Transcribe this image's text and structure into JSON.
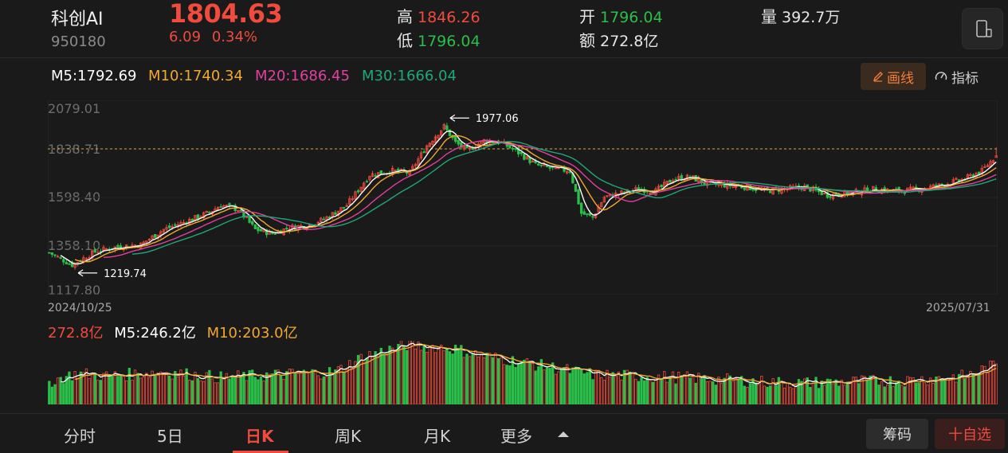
{
  "stock": {
    "name": "科创AI",
    "code": "950180",
    "price": "1804.63",
    "change": "6.09",
    "change_pct": "0.34%"
  },
  "quote": {
    "high_label": "高",
    "high": "1846.26",
    "low_label": "低",
    "low": "1796.04",
    "open_label": "开",
    "open": "1796.04",
    "amount_label": "额",
    "amount": "272.8亿",
    "volume_label": "量",
    "volume": "392.7万"
  },
  "ma": {
    "m5": "M5:1792.69",
    "m10": "M10:1740.34",
    "m20": "M20:1686.45",
    "m30": "M30:1666.04"
  },
  "toolbar": {
    "draw_label": "画线",
    "indicator_label": "指标"
  },
  "chart": {
    "y_labels": [
      "2079.01",
      "1838.71",
      "1598.40",
      "1358.10",
      "1117.80"
    ],
    "start_date": "2024/10/25",
    "end_date": "2025/07/31",
    "max_marker": "1977.06",
    "min_marker": "1219.74"
  },
  "volume": {
    "today": "272.8亿",
    "m5": "M5:246.2亿",
    "m10": "M10:203.0亿"
  },
  "tabs": {
    "t1": "分时",
    "t2": "5日",
    "t3": "日K",
    "t4": "周K",
    "t5": "月K",
    "t6": "更多"
  },
  "bottom": {
    "chips": "筹码",
    "fav": "十自选"
  },
  "colors": {
    "up": "#f04b3c",
    "down": "#2bbf4a",
    "ma5": "#ffffff",
    "ma10": "#f0a830",
    "ma20": "#e040a0",
    "ma30": "#1fa77a"
  },
  "chart_data": {
    "type": "candlestick",
    "ylim": [
      1117.8,
      2079.01
    ],
    "close_anchors": [
      [
        0,
        1325
      ],
      [
        8,
        1265
      ],
      [
        16,
        1330
      ],
      [
        24,
        1355
      ],
      [
        32,
        1365
      ],
      [
        40,
        1440
      ],
      [
        48,
        1480
      ],
      [
        56,
        1525
      ],
      [
        60,
        1560
      ],
      [
        66,
        1540
      ],
      [
        72,
        1440
      ],
      [
        78,
        1420
      ],
      [
        84,
        1450
      ],
      [
        90,
        1460
      ],
      [
        96,
        1490
      ],
      [
        104,
        1560
      ],
      [
        112,
        1710
      ],
      [
        120,
        1730
      ],
      [
        126,
        1720
      ],
      [
        132,
        1855
      ],
      [
        138,
        1950
      ],
      [
        142,
        1870
      ],
      [
        146,
        1830
      ],
      [
        152,
        1880
      ],
      [
        158,
        1870
      ],
      [
        164,
        1820
      ],
      [
        170,
        1760
      ],
      [
        176,
        1740
      ],
      [
        182,
        1730
      ],
      [
        186,
        1520
      ],
      [
        190,
        1500
      ],
      [
        194,
        1600
      ],
      [
        200,
        1620
      ],
      [
        206,
        1640
      ],
      [
        212,
        1630
      ],
      [
        218,
        1690
      ],
      [
        224,
        1700
      ],
      [
        230,
        1665
      ],
      [
        236,
        1660
      ],
      [
        244,
        1650
      ],
      [
        250,
        1630
      ],
      [
        256,
        1640
      ],
      [
        264,
        1650
      ],
      [
        272,
        1610
      ],
      [
        280,
        1620
      ],
      [
        288,
        1640
      ],
      [
        296,
        1630
      ],
      [
        304,
        1640
      ],
      [
        312,
        1660
      ],
      [
        320,
        1690
      ],
      [
        326,
        1730
      ],
      [
        331,
        1805
      ]
    ],
    "volume_anchors": [
      [
        0,
        32
      ],
      [
        10,
        44
      ],
      [
        20,
        40
      ],
      [
        40,
        46
      ],
      [
        60,
        38
      ],
      [
        80,
        42
      ],
      [
        100,
        46
      ],
      [
        110,
        68
      ],
      [
        125,
        84
      ],
      [
        140,
        80
      ],
      [
        150,
        70
      ],
      [
        170,
        56
      ],
      [
        190,
        42
      ],
      [
        220,
        38
      ],
      [
        260,
        30
      ],
      [
        300,
        34
      ],
      [
        320,
        40
      ],
      [
        331,
        56
      ]
    ]
  }
}
